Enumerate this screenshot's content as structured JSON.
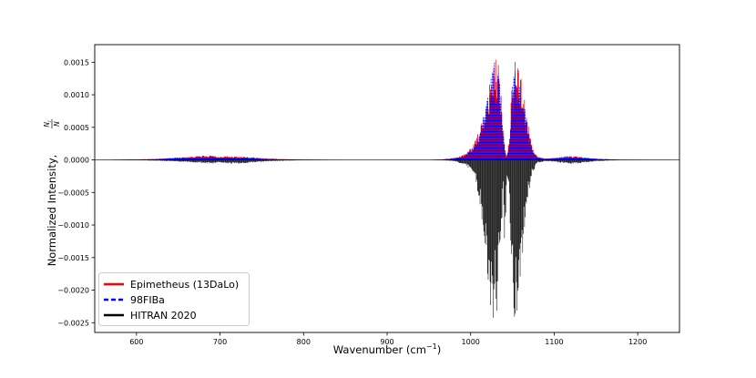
{
  "chart_data": {
    "type": "line",
    "xlabel": "Wavenumber (cm",
    "xlabel_sup": "−1",
    "xlabel_end": ")",
    "ylabel": "Normalized Intensity,",
    "ylabel_fraction": {
      "numerator": "N",
      "numerator_sub": "i",
      "denominator": "N"
    },
    "xlim": [
      550,
      1250
    ],
    "ylim": [
      -0.00265,
      0.00177
    ],
    "x_ticks": [
      600,
      700,
      800,
      900,
      1000,
      1100,
      1200
    ],
    "x_tick_labels": [
      "600",
      "700",
      "800",
      "900",
      "1000",
      "1100",
      "1200"
    ],
    "y_ticks": [
      0.0015,
      0.001,
      0.0005,
      0.0,
      -0.0005,
      -0.001,
      -0.0015,
      -0.002,
      -0.0025
    ],
    "y_tick_labels": [
      "0.0015",
      "0.0010",
      "0.0005",
      "0.0000",
      "−0.0005",
      "−0.0010",
      "−0.0015",
      "−0.0020",
      "−0.0025"
    ],
    "grid": false,
    "legend_position": "bottom-left",
    "series": [
      {
        "name": "Epimetheus (13DaLo)",
        "color": "#ff0000",
        "style": "solid",
        "direction": "positive",
        "envelope": [
          [
            550,
            0.0
          ],
          [
            580,
            3e-06
          ],
          [
            620,
            1.5e-05
          ],
          [
            650,
            4e-05
          ],
          [
            670,
            6e-05
          ],
          [
            690,
            7e-05
          ],
          [
            700,
            5e-05
          ],
          [
            710,
            6e-05
          ],
          [
            730,
            5e-05
          ],
          [
            760,
            2e-05
          ],
          [
            800,
            5e-06
          ],
          [
            850,
            0.0
          ],
          [
            950,
            0.0
          ],
          [
            965,
            8e-06
          ],
          [
            980,
            3e-05
          ],
          [
            995,
            0.0001
          ],
          [
            1005,
            0.00028
          ],
          [
            1012,
            0.00055
          ],
          [
            1018,
            0.0009
          ],
          [
            1024,
            0.00135
          ],
          [
            1029,
            0.00158
          ],
          [
            1033,
            0.0015
          ],
          [
            1037,
            0.00095
          ],
          [
            1040,
            0.0003
          ],
          [
            1043,
            3e-05
          ],
          [
            1046,
            0.0003
          ],
          [
            1049,
            0.0011
          ],
          [
            1053,
            0.00158
          ],
          [
            1057,
            0.00152
          ],
          [
            1062,
            0.0012
          ],
          [
            1068,
            0.0006
          ],
          [
            1074,
            0.0002
          ],
          [
            1080,
            5e-05
          ],
          [
            1090,
            2e-05
          ],
          [
            1100,
            3e-05
          ],
          [
            1110,
            5e-05
          ],
          [
            1120,
            6e-05
          ],
          [
            1130,
            5e-05
          ],
          [
            1150,
            2e-05
          ],
          [
            1180,
            3e-06
          ],
          [
            1250,
            0.0
          ]
        ]
      },
      {
        "name": "98FIBa",
        "color": "#0000ff",
        "style": "dashed",
        "direction": "positive",
        "envelope": [
          [
            550,
            0.0
          ],
          [
            580,
            3e-06
          ],
          [
            620,
            1.2e-05
          ],
          [
            650,
            3.5e-05
          ],
          [
            670,
            5e-05
          ],
          [
            690,
            6e-05
          ],
          [
            700,
            4e-05
          ],
          [
            710,
            5e-05
          ],
          [
            730,
            4e-05
          ],
          [
            760,
            1.5e-05
          ],
          [
            800,
            4e-06
          ],
          [
            850,
            0.0
          ],
          [
            950,
            0.0
          ],
          [
            965,
            7e-06
          ],
          [
            980,
            2.8e-05
          ],
          [
            995,
            9e-05
          ],
          [
            1005,
            0.00026
          ],
          [
            1012,
            0.00052
          ],
          [
            1018,
            0.00088
          ],
          [
            1024,
            0.00133
          ],
          [
            1029,
            0.00157
          ],
          [
            1033,
            0.00145
          ],
          [
            1037,
            0.0009
          ],
          [
            1040,
            0.00028
          ],
          [
            1043,
            3e-05
          ],
          [
            1046,
            0.00028
          ],
          [
            1049,
            0.00105
          ],
          [
            1053,
            0.00157
          ],
          [
            1057,
            0.00148
          ],
          [
            1062,
            0.00112
          ],
          [
            1068,
            0.00055
          ],
          [
            1074,
            0.00018
          ],
          [
            1080,
            4e-05
          ],
          [
            1090,
            2e-05
          ],
          [
            1100,
            3e-05
          ],
          [
            1110,
            5e-05
          ],
          [
            1120,
            6e-05
          ],
          [
            1130,
            5e-05
          ],
          [
            1150,
            2e-05
          ],
          [
            1180,
            3e-06
          ],
          [
            1250,
            0.0
          ]
        ]
      },
      {
        "name": "HITRAN 2020",
        "color": "#000000",
        "style": "solid",
        "direction": "negative",
        "envelope": [
          [
            550,
            0.0
          ],
          [
            600,
            -5e-06
          ],
          [
            640,
            -2e-05
          ],
          [
            670,
            -4e-05
          ],
          [
            690,
            -6e-05
          ],
          [
            700,
            -4e-05
          ],
          [
            710,
            -6e-05
          ],
          [
            730,
            -5e-05
          ],
          [
            760,
            -2e-05
          ],
          [
            800,
            -5e-06
          ],
          [
            850,
            0.0
          ],
          [
            950,
            0.0
          ],
          [
            965,
            -5e-06
          ],
          [
            980,
            -2e-05
          ],
          [
            995,
            -8e-05
          ],
          [
            1005,
            -0.00028
          ],
          [
            1012,
            -0.00075
          ],
          [
            1018,
            -0.0015
          ],
          [
            1024,
            -0.0023
          ],
          [
            1028,
            -0.00255
          ],
          [
            1032,
            -0.00235
          ],
          [
            1036,
            -0.0015
          ],
          [
            1039,
            -0.0004
          ],
          [
            1041,
            -0.0016
          ],
          [
            1043,
            -0.0003
          ],
          [
            1046,
            -0.0005
          ],
          [
            1049,
            -0.0017
          ],
          [
            1053,
            -0.0026
          ],
          [
            1057,
            -0.0024
          ],
          [
            1062,
            -0.0015
          ],
          [
            1068,
            -0.00065
          ],
          [
            1074,
            -0.0002
          ],
          [
            1080,
            -5e-05
          ],
          [
            1090,
            -2e-05
          ],
          [
            1100,
            -3e-05
          ],
          [
            1110,
            -5e-05
          ],
          [
            1120,
            -6e-05
          ],
          [
            1130,
            -5e-05
          ],
          [
            1150,
            -2e-05
          ],
          [
            1180,
            -3e-06
          ],
          [
            1250,
            0.0
          ]
        ]
      }
    ]
  }
}
